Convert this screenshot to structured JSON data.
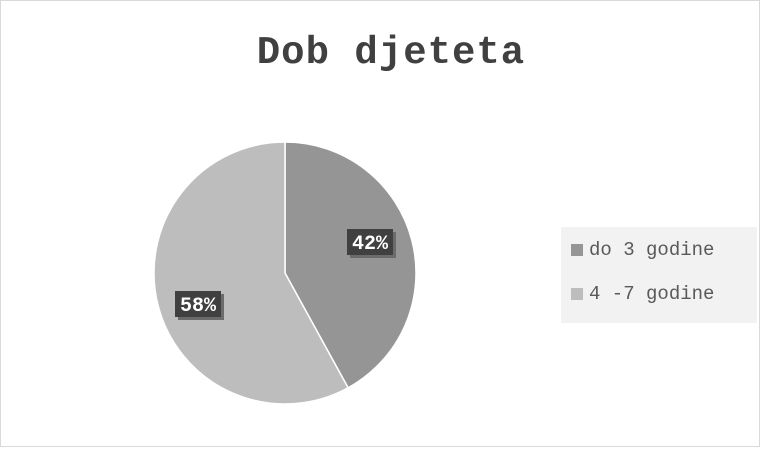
{
  "chart_data": {
    "type": "pie",
    "title": "Dob djeteta",
    "categories": [
      "do 3 godine",
      "4 -7 godine"
    ],
    "values": [
      42,
      58
    ],
    "data_labels": [
      "42%",
      "58%"
    ],
    "colors": [
      "#959595",
      "#bdbdbd"
    ],
    "legend_position": "right"
  }
}
